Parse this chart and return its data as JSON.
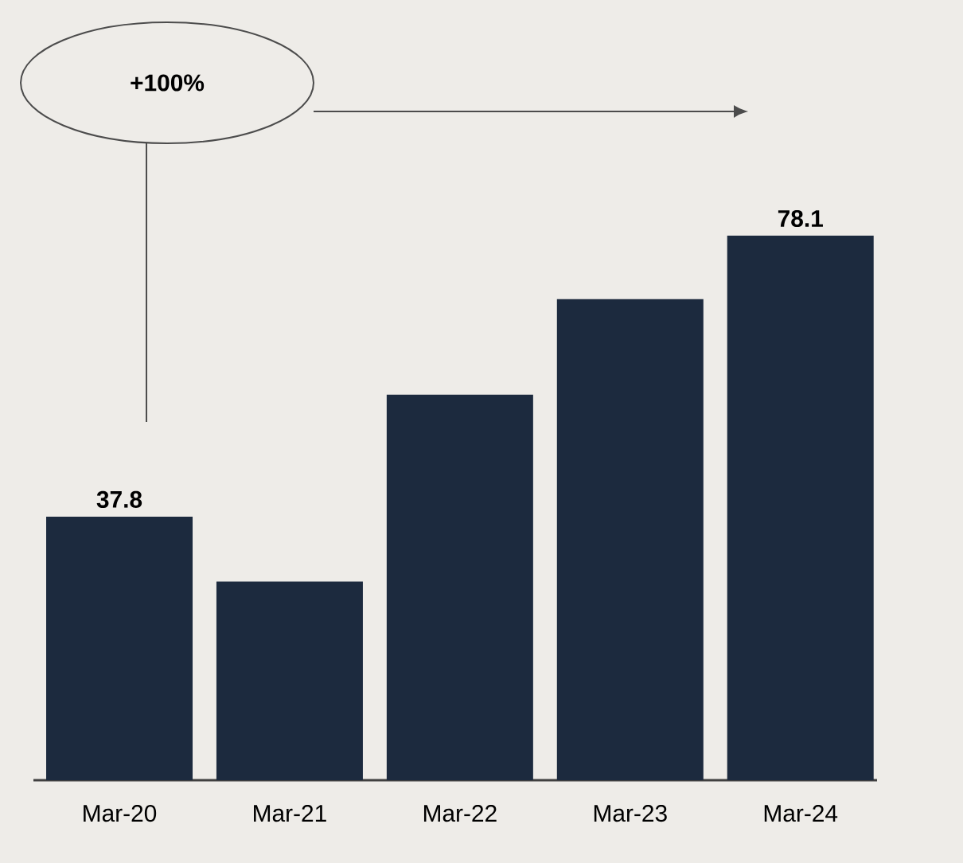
{
  "chart_data": {
    "type": "bar",
    "categories": [
      "Mar-20",
      "Mar-21",
      "Mar-22",
      "Mar-23",
      "Mar-24"
    ],
    "values": [
      37.8,
      28.5,
      55.3,
      69.0,
      78.1
    ],
    "value_labels": [
      "37.8",
      null,
      null,
      null,
      "78.1"
    ],
    "color": "#1c2a3e",
    "annotations": [
      "+100%"
    ]
  }
}
